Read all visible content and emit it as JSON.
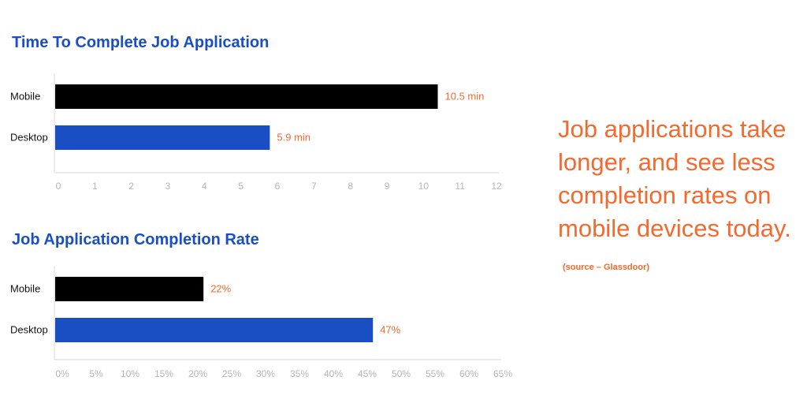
{
  "chart_data": [
    {
      "type": "bar",
      "orientation": "horizontal",
      "title": "Time To Complete Job Application",
      "categories": [
        "Mobile",
        "Desktop"
      ],
      "values": [
        10.5,
        5.9
      ],
      "value_labels": [
        "10.5 min",
        "5.9 min"
      ],
      "colors": [
        "#000000",
        "#1a4fc4"
      ],
      "label_color": "#f26a2e",
      "xlim": [
        0,
        12
      ],
      "ticks": [
        "0",
        "1",
        "2",
        "3",
        "4",
        "5",
        "6",
        "7",
        "8",
        "9",
        "10",
        "11",
        "12"
      ],
      "grid": false
    },
    {
      "type": "bar",
      "orientation": "horizontal",
      "title": "Job Application Completion Rate",
      "categories": [
        "Mobile",
        "Desktop"
      ],
      "values": [
        22,
        47
      ],
      "value_labels": [
        "22%",
        "47%"
      ],
      "colors": [
        "#000000",
        "#1a4fc4"
      ],
      "label_color": "#f26a2e",
      "xlim": [
        0,
        65
      ],
      "ticks": [
        "0%",
        "5%",
        "10%",
        "15%",
        "20%",
        "25%",
        "30%",
        "35%",
        "40%",
        "45%",
        "50%",
        "55%",
        "60%",
        "65%"
      ],
      "grid": false
    }
  ],
  "callout": {
    "text": "Job applications take longer, and see less completion rates on mobile devices today.",
    "source": "(source – Glassdoor)"
  }
}
